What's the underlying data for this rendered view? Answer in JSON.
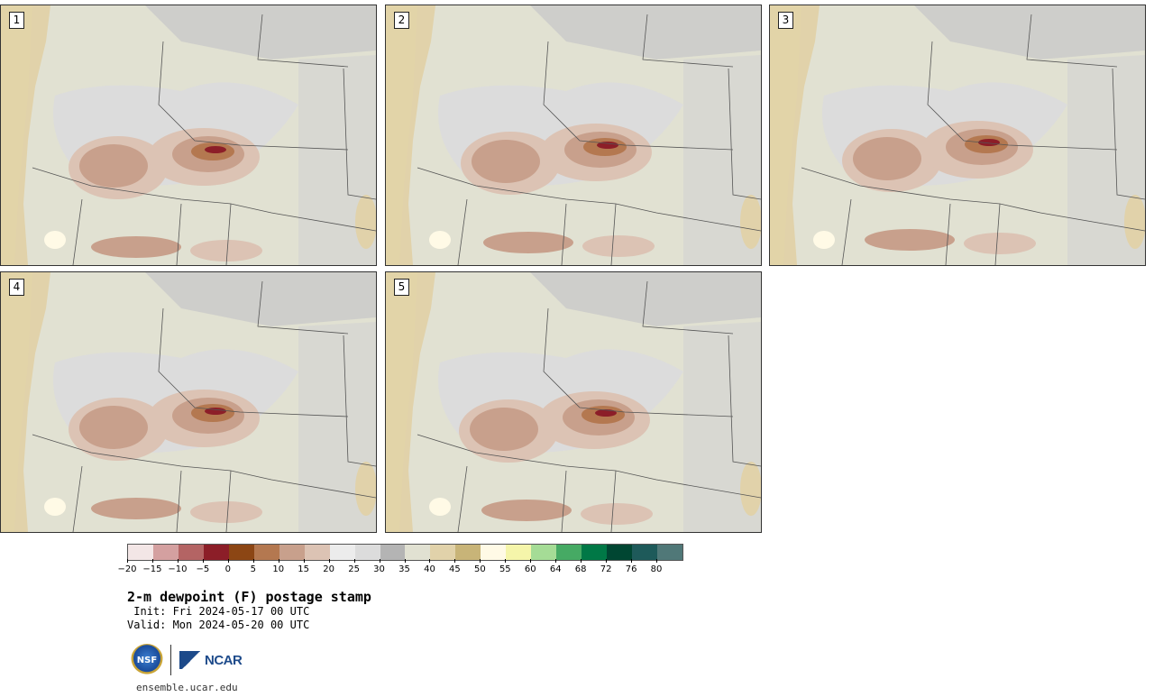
{
  "panels": [
    {
      "label": "1"
    },
    {
      "label": "2"
    },
    {
      "label": "3"
    },
    {
      "label": "4"
    },
    {
      "label": "5"
    }
  ],
  "colorbar": {
    "colors": [
      "#f3e6e6",
      "#d4a0a0",
      "#b46464",
      "#8c1e28",
      "#8c4614",
      "#b47850",
      "#c8a08c",
      "#dcc3b4",
      "#ececec",
      "#dcdcdc",
      "#b4b4b4",
      "#e1e1d2",
      "#e1d2aa",
      "#c8b478",
      "#fffae6",
      "#f5f5aa",
      "#a5dc96",
      "#46aa64",
      "#007846",
      "#004632",
      "#1e5a5a",
      "#507878"
    ],
    "tick_labels": [
      "−20",
      "−15",
      "−10",
      "−5",
      "0",
      "5",
      "10",
      "15",
      "20",
      "25",
      "30",
      "35",
      "40",
      "45",
      "50",
      "55",
      "60",
      "64",
      "68",
      "72",
      "76",
      "80"
    ]
  },
  "title": "2-m dewpoint (F) postage stamp",
  "init_line": " Init: Fri 2024-05-17 00 UTC",
  "valid_line": "Valid: Mon 2024-05-20 00 UTC",
  "logos": {
    "nsf": "NSF",
    "ncar": "NCAR"
  },
  "url": "ensemble.ucar.edu"
}
